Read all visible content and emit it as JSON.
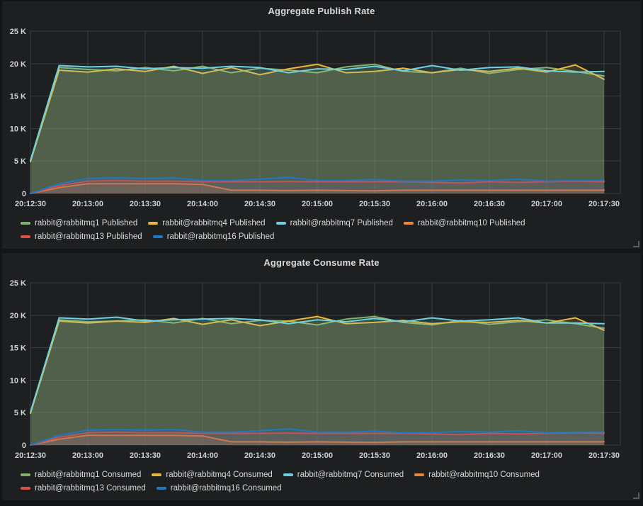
{
  "theme": {
    "page_bg": "#131415",
    "panel_bg": "#1d1f21",
    "text_color": "#d8d9da",
    "grid_color": "rgba(255,255,255,0.13)"
  },
  "chart_data": [
    {
      "type": "line",
      "title": "Aggregate Publish Rate",
      "xlabel": "",
      "ylabel": "",
      "unit": "K messages/s",
      "grid": true,
      "legend_position": "bottom",
      "ylim_k": [
        0,
        25
      ],
      "y_tick_values_k": [
        0,
        5,
        10,
        15,
        20,
        25
      ],
      "y_tick_labels": [
        "0",
        "5 K",
        "10 K",
        "15 K",
        "20 K",
        "25 K"
      ],
      "x_tick_labels": [
        "20:12:30",
        "20:13:00",
        "20:13:30",
        "20:14:00",
        "20:14:30",
        "20:15:00",
        "20:15:30",
        "20:16:00",
        "20:16:30",
        "20:17:00",
        "20:17:30"
      ],
      "points_per_series": 21,
      "point_interval_seconds": 15,
      "series": [
        {
          "name": "rabbit@rabbitmq1 Published",
          "color": "#7EB26D",
          "values_k": [
            5.0,
            19.4,
            19.1,
            18.9,
            19.4,
            18.9,
            19.6,
            18.6,
            19.3,
            19.0,
            18.6,
            19.5,
            19.9,
            18.8,
            18.6,
            19.3,
            18.5,
            19.1,
            19.4,
            18.8,
            18.1
          ]
        },
        {
          "name": "rabbit@rabbitmq4 Published",
          "color": "#EAB839",
          "values_k": [
            4.9,
            19.0,
            18.7,
            19.2,
            18.8,
            19.6,
            18.5,
            19.4,
            18.3,
            19.2,
            19.9,
            18.6,
            18.8,
            19.3,
            18.6,
            19.1,
            18.8,
            19.3,
            18.7,
            19.8,
            17.6
          ]
        },
        {
          "name": "rabbit@rabbitmq7 Published",
          "color": "#6ED0E0",
          "values_k": [
            5.1,
            19.7,
            19.5,
            19.6,
            19.2,
            19.4,
            19.3,
            19.6,
            19.4,
            18.6,
            19.2,
            19.1,
            19.6,
            18.9,
            19.7,
            19.0,
            19.4,
            19.5,
            18.9,
            18.7,
            18.8
          ]
        },
        {
          "name": "rabbit@rabbitmq10 Published",
          "color": "#EF843C",
          "values_k": [
            0,
            0.9,
            1.5,
            1.5,
            1.5,
            1.5,
            1.4,
            0.5,
            0.5,
            0.45,
            0.5,
            0.45,
            0.4,
            0.5,
            0.5,
            0.5,
            0.5,
            0.5,
            0.5,
            0.5,
            0.5
          ]
        },
        {
          "name": "rabbit@rabbitmq13 Published",
          "color": "#E24D42",
          "values_k": [
            0,
            1.2,
            1.9,
            2.0,
            1.9,
            1.9,
            1.8,
            1.8,
            1.8,
            1.85,
            1.8,
            1.8,
            1.8,
            1.8,
            1.7,
            1.6,
            1.8,
            1.7,
            1.8,
            1.9,
            1.8
          ]
        },
        {
          "name": "rabbit@rabbitmq16 Published",
          "color": "#1F78C1",
          "values_k": [
            0,
            1.5,
            2.3,
            2.4,
            2.3,
            2.4,
            2.0,
            2.0,
            2.2,
            2.5,
            2.0,
            2.0,
            2.15,
            1.9,
            1.9,
            2.1,
            2.0,
            2.2,
            1.9,
            2.0,
            2.0
          ]
        }
      ]
    },
    {
      "type": "line",
      "title": "Aggregate Consume Rate",
      "xlabel": "",
      "ylabel": "",
      "unit": "K messages/s",
      "grid": true,
      "legend_position": "bottom",
      "ylim_k": [
        0,
        25
      ],
      "y_tick_values_k": [
        0,
        5,
        10,
        15,
        20,
        25
      ],
      "y_tick_labels": [
        "0",
        "5 K",
        "10 K",
        "15 K",
        "20 K",
        "25 K"
      ],
      "x_tick_labels": [
        "20:12:30",
        "20:13:00",
        "20:13:30",
        "20:14:00",
        "20:14:30",
        "20:15:00",
        "20:15:30",
        "20:16:00",
        "20:16:30",
        "20:17:00",
        "20:17:30"
      ],
      "points_per_series": 21,
      "point_interval_seconds": 15,
      "series": [
        {
          "name": "rabbit@rabbitmq1 Consumed",
          "color": "#7EB26D",
          "values_k": [
            5.0,
            19.3,
            19.0,
            19.1,
            19.3,
            18.8,
            19.5,
            18.7,
            19.2,
            19.1,
            18.5,
            19.4,
            19.8,
            18.9,
            18.5,
            19.2,
            18.6,
            19.0,
            19.3,
            18.7,
            18.0
          ]
        },
        {
          "name": "rabbit@rabbitmq4 Consumed",
          "color": "#EAB839",
          "values_k": [
            4.9,
            19.1,
            18.8,
            19.1,
            18.9,
            19.5,
            18.6,
            19.3,
            18.4,
            19.1,
            19.8,
            18.7,
            18.9,
            19.2,
            18.7,
            19.0,
            18.9,
            19.2,
            18.8,
            19.6,
            17.7
          ]
        },
        {
          "name": "rabbit@rabbitmq7 Consumed",
          "color": "#6ED0E0",
          "values_k": [
            5.1,
            19.6,
            19.4,
            19.7,
            19.1,
            19.3,
            19.4,
            19.5,
            19.3,
            18.7,
            19.3,
            19.0,
            19.5,
            19.0,
            19.6,
            19.1,
            19.3,
            19.6,
            18.8,
            18.8,
            18.7
          ]
        },
        {
          "name": "rabbit@rabbitmq10 Consumed",
          "color": "#EF843C",
          "values_k": [
            0,
            0.9,
            1.5,
            1.5,
            1.5,
            1.5,
            1.4,
            0.5,
            0.5,
            0.45,
            0.5,
            0.45,
            0.4,
            0.5,
            0.5,
            0.5,
            0.5,
            0.5,
            0.5,
            0.5,
            0.5
          ]
        },
        {
          "name": "rabbit@rabbitmq13 Consumed",
          "color": "#E24D42",
          "values_k": [
            0,
            1.2,
            1.9,
            2.0,
            1.9,
            1.9,
            1.8,
            1.8,
            1.8,
            1.85,
            1.8,
            1.8,
            1.8,
            1.8,
            1.7,
            1.6,
            1.8,
            1.7,
            1.8,
            1.9,
            1.8
          ]
        },
        {
          "name": "rabbit@rabbitmq16 Consumed",
          "color": "#1F78C1",
          "values_k": [
            0,
            1.5,
            2.3,
            2.4,
            2.3,
            2.4,
            2.0,
            2.0,
            2.2,
            2.5,
            2.0,
            2.0,
            2.15,
            1.9,
            1.9,
            2.1,
            2.0,
            2.2,
            1.9,
            2.0,
            2.0
          ]
        }
      ]
    }
  ]
}
